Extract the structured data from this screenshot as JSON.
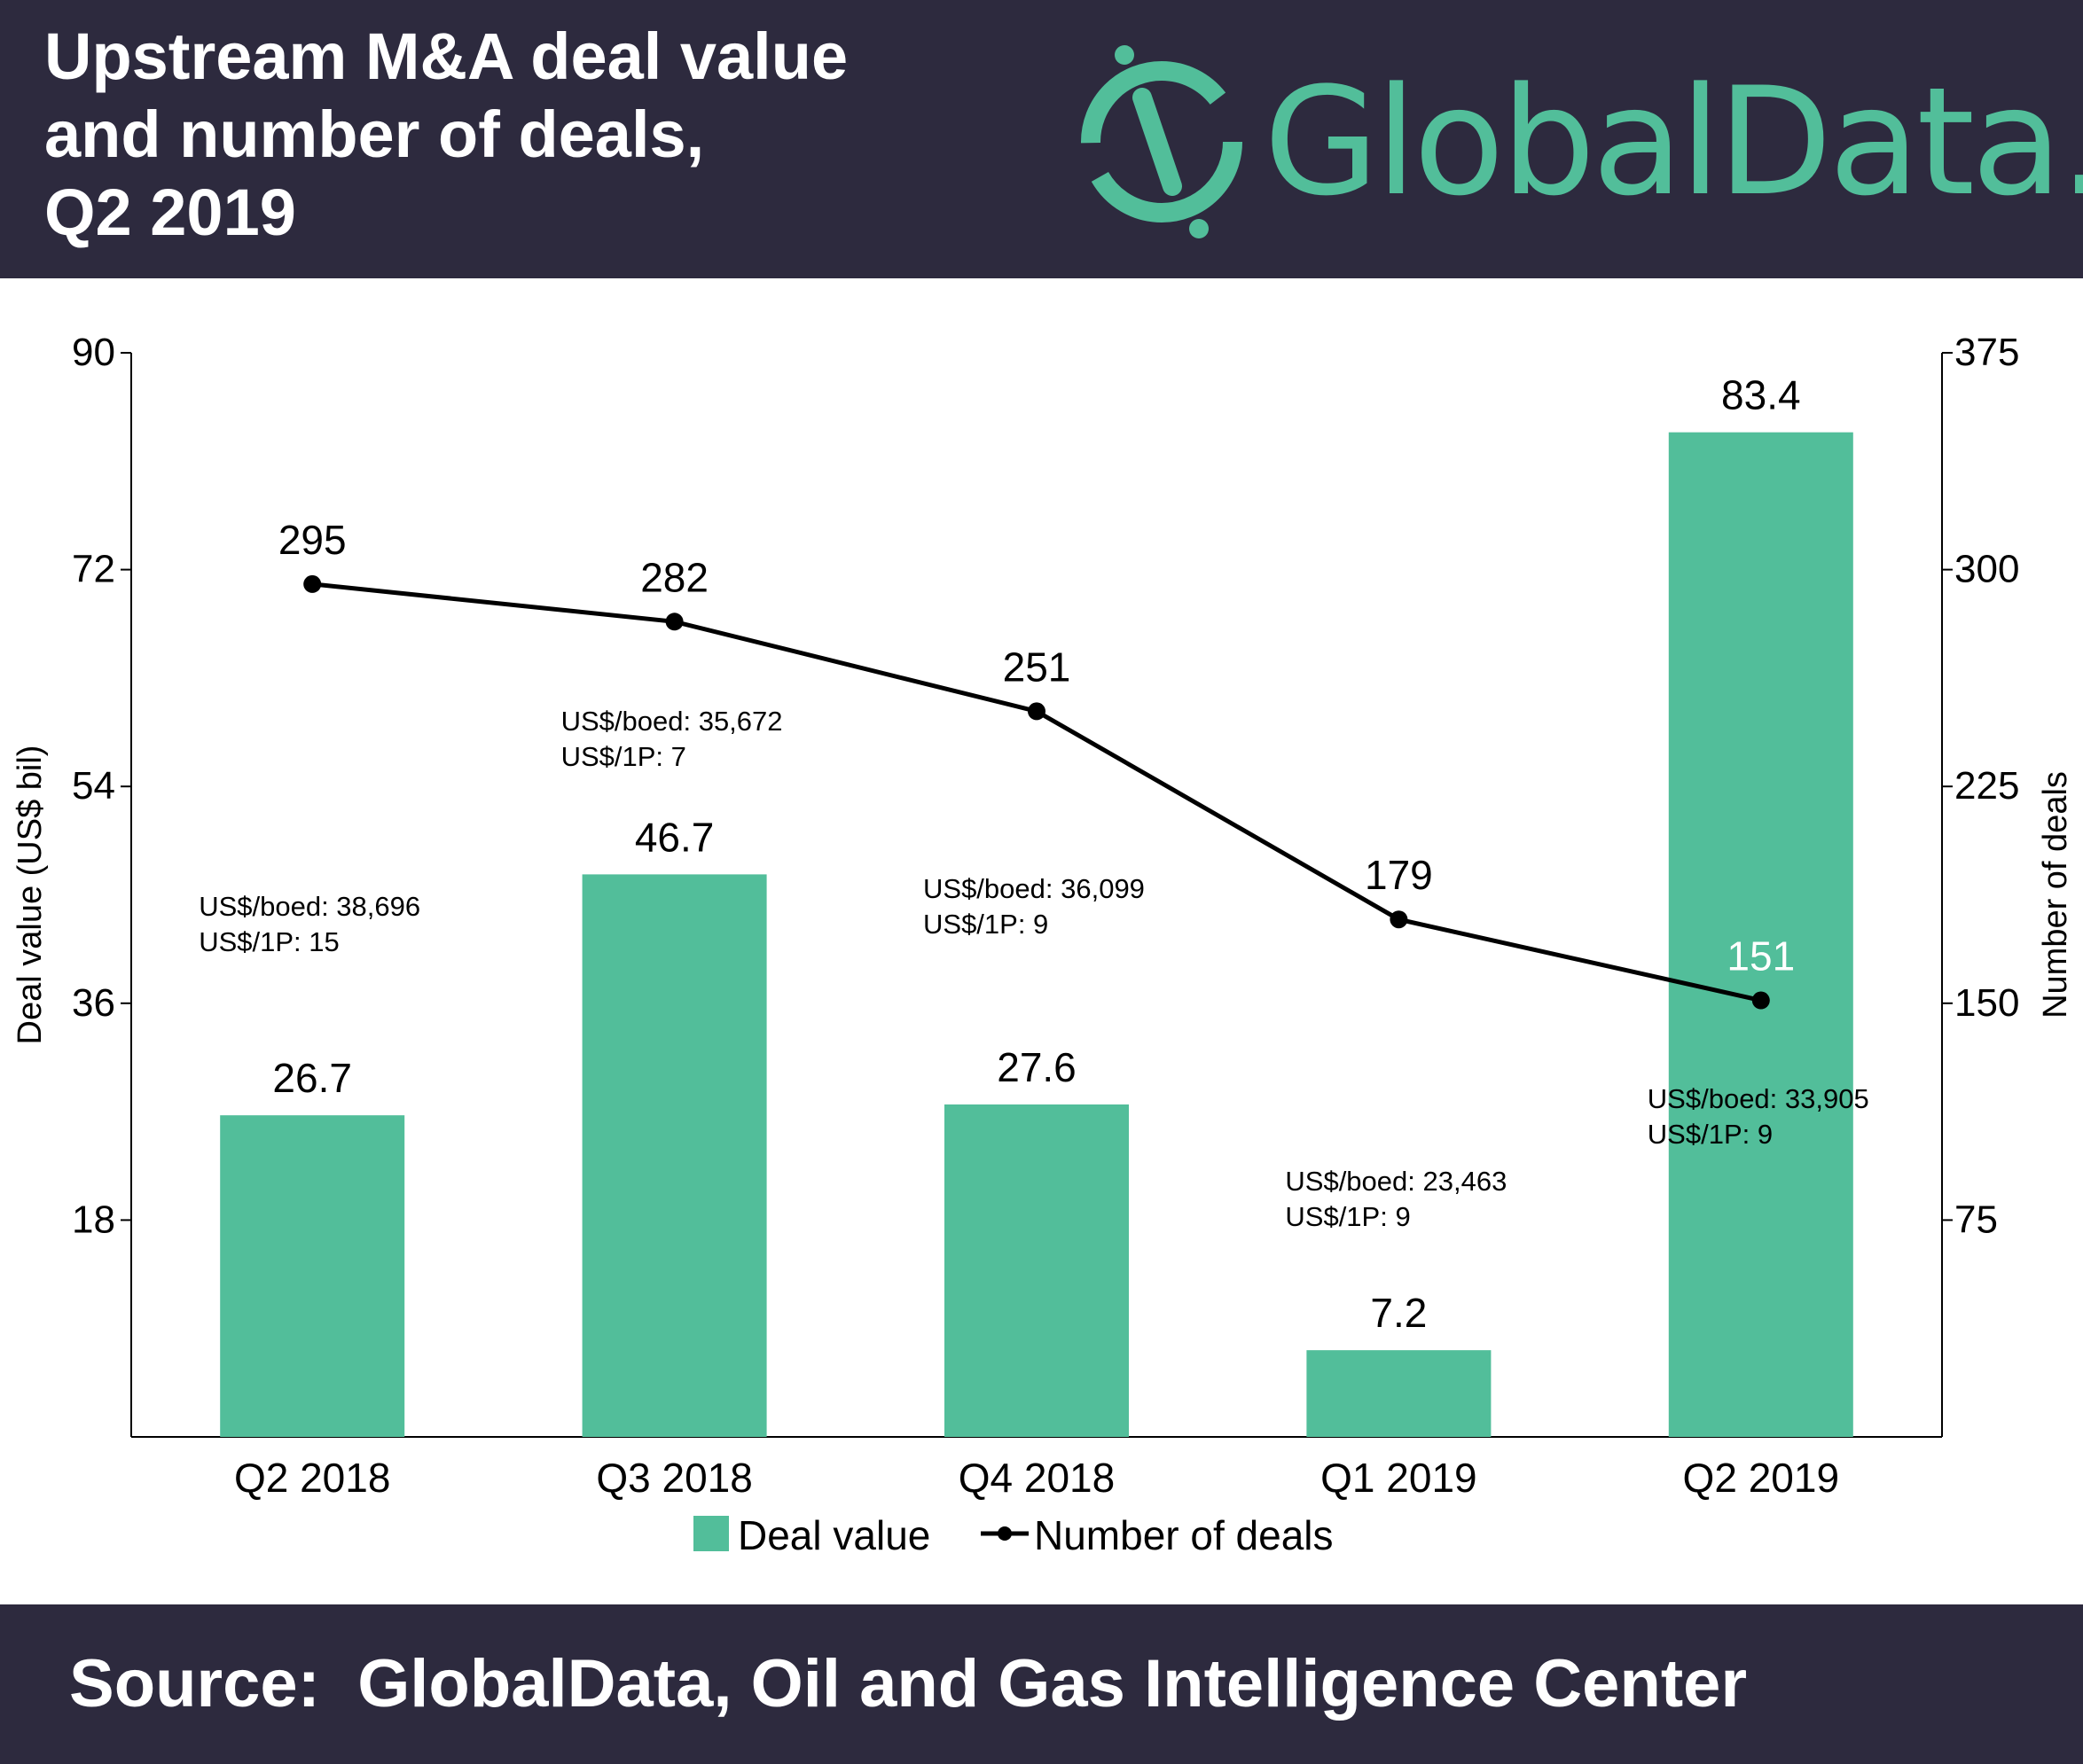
{
  "header": {
    "title_lines": [
      "Upstream M&A deal value",
      "and number of deals,",
      "Q2 2019"
    ],
    "logo_text": "GlobalData."
  },
  "footer": {
    "source": "Source:  GlobalData, Oil and Gas Intelligence Center"
  },
  "colors": {
    "bar": "#52be9a",
    "line": "#000000",
    "header_bg": "#2d2a3e",
    "brand": "#52be9a"
  },
  "chart_data": {
    "type": "bar",
    "categories": [
      "Q2 2018",
      "Q3 2018",
      "Q4 2018",
      "Q1 2019",
      "Q2 2019"
    ],
    "series": [
      {
        "name": "Deal value",
        "type": "bar",
        "axis": "left",
        "values": [
          26.7,
          46.7,
          27.6,
          7.2,
          83.4
        ],
        "value_labels": [
          "26.7",
          "46.7",
          "27.6",
          "7.2",
          "83.4"
        ]
      },
      {
        "name": "Number of deals",
        "type": "line",
        "axis": "right",
        "values": [
          295,
          282,
          251,
          179,
          151
        ],
        "value_labels": [
          "295",
          "282",
          "251",
          "179",
          "151"
        ]
      }
    ],
    "annotations": [
      {
        "category": "Q2 2018",
        "lines": [
          "US$/boed: 38,696",
          "US$/1P: 15"
        ]
      },
      {
        "category": "Q3 2018",
        "lines": [
          "US$/boed: 35,672",
          "US$/1P: 7"
        ]
      },
      {
        "category": "Q4 2018",
        "lines": [
          "US$/boed: 36,099",
          "US$/1P: 9"
        ]
      },
      {
        "category": "Q1 2019",
        "lines": [
          "US$/boed: 23,463",
          "US$/1P: 9"
        ]
      },
      {
        "category": "Q2 2019",
        "lines": [
          "US$/boed: 33,905",
          "US$/1P: 9"
        ]
      }
    ],
    "ylabel": "Deal value (US$ bil)",
    "y2label": "Number of deals",
    "ylim": [
      0,
      90
    ],
    "y2lim": [
      0,
      375
    ],
    "yticks": [
      "18",
      "36",
      "54",
      "72",
      "90"
    ],
    "y2ticks": [
      "75",
      "150",
      "225",
      "300",
      "375"
    ],
    "legend": [
      "Deal value",
      "Number of deals"
    ],
    "legend_position": "bottom",
    "grid": false
  }
}
